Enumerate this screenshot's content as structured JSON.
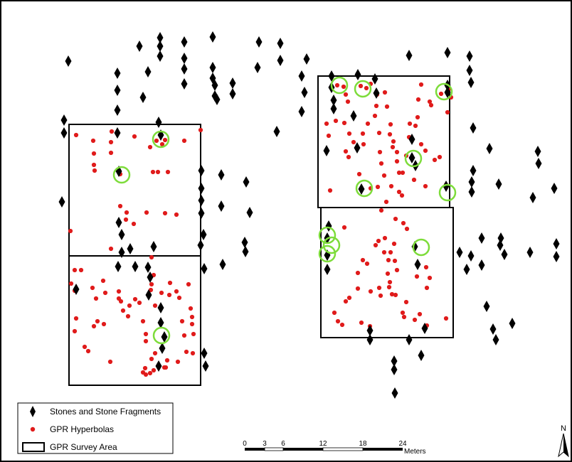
{
  "legend": {
    "stones_label": "Stones and Stone Fragments",
    "hyperbolas_label": "GPR Hyperbolas",
    "survey_label": "GPR Survey Area"
  },
  "scale_bar": {
    "ticks": [
      "0",
      "3",
      "6",
      "12",
      "18",
      "24"
    ],
    "unit": "Meters"
  },
  "north_arrow": {
    "label": "N"
  },
  "colors": {
    "stone": "#000000",
    "hyperbola": "#e01b1b",
    "highlight_circle": "#7ddc3a",
    "survey_outline": "#000000"
  }
}
